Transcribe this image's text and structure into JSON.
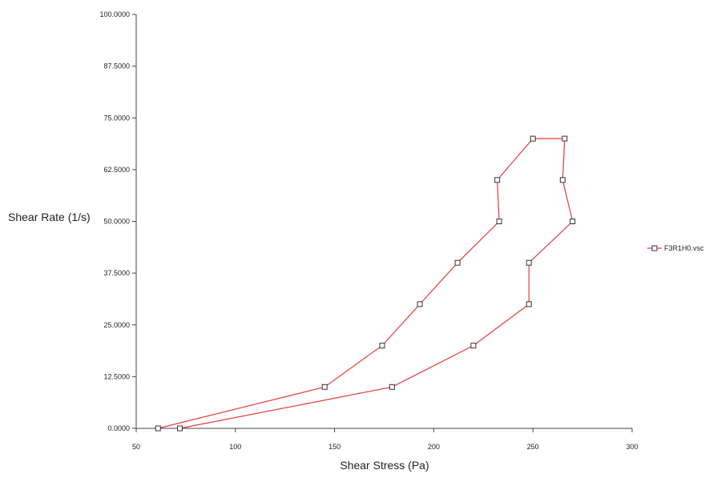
{
  "chart_data": {
    "type": "line",
    "title": "",
    "xlabel": "Shear Stress (Pa)",
    "ylabel": "Shear Rate (1/s)",
    "xlim": [
      50,
      300
    ],
    "ylim": [
      0,
      100
    ],
    "x_ticks": [
      "50",
      "100",
      "150",
      "200",
      "250",
      "300"
    ],
    "y_ticks": [
      "0.0000",
      "12.5000",
      "25.0000",
      "37.5000",
      "50.0000",
      "62.5000",
      "75.0000",
      "87.5000",
      "100.0000"
    ],
    "grid": false,
    "legend_position": "right",
    "series": [
      {
        "name": "F3R1H0.vsc",
        "color": "#e23b3b",
        "marker": "square",
        "points": [
          {
            "x": 61,
            "y": 0
          },
          {
            "x": 145,
            "y": 10
          },
          {
            "x": 174,
            "y": 20
          },
          {
            "x": 193,
            "y": 30
          },
          {
            "x": 212,
            "y": 40
          },
          {
            "x": 233,
            "y": 50
          },
          {
            "x": 232,
            "y": 60
          },
          {
            "x": 250,
            "y": 70
          },
          {
            "x": 266,
            "y": 70
          },
          {
            "x": 265,
            "y": 60
          },
          {
            "x": 270,
            "y": 50
          },
          {
            "x": 248,
            "y": 40
          },
          {
            "x": 248,
            "y": 30
          },
          {
            "x": 220,
            "y": 20
          },
          {
            "x": 179,
            "y": 10
          },
          {
            "x": 72,
            "y": 0
          }
        ]
      }
    ]
  }
}
